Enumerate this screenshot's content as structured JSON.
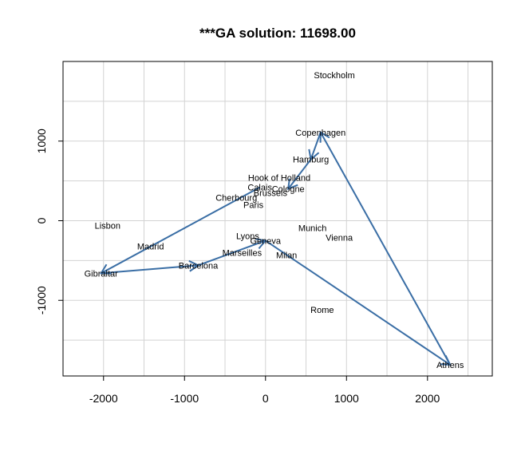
{
  "chart_data": {
    "type": "scatter",
    "title": "***GA solution: 11698.00",
    "xlabel": "",
    "ylabel": "",
    "xlim": [
      -2500,
      2800
    ],
    "ylim": [
      -1950,
      2000
    ],
    "x_ticks": [
      -2000,
      -1000,
      0,
      1000,
      2000
    ],
    "y_ticks": [
      -1000,
      0,
      1000
    ],
    "grid": true,
    "route_color": "#3a6ea5",
    "cities": [
      {
        "name": "Stockholm",
        "x": 850,
        "y": 1830
      },
      {
        "name": "Copenhagen",
        "x": 680,
        "y": 1110
      },
      {
        "name": "Hamburg",
        "x": 560,
        "y": 770
      },
      {
        "name": "Hook of Holland",
        "x": 170,
        "y": 540
      },
      {
        "name": "Calais",
        "x": -70,
        "y": 420
      },
      {
        "name": "Cologne",
        "x": 280,
        "y": 400
      },
      {
        "name": "Brussels",
        "x": 60,
        "y": 350
      },
      {
        "name": "Cherbourg",
        "x": -360,
        "y": 290
      },
      {
        "name": "Paris",
        "x": -150,
        "y": 200
      },
      {
        "name": "Lisbon",
        "x": -1950,
        "y": -60
      },
      {
        "name": "Munich",
        "x": 580,
        "y": -90
      },
      {
        "name": "Lyons",
        "x": -220,
        "y": -190
      },
      {
        "name": "Geneva",
        "x": 0,
        "y": -250
      },
      {
        "name": "Vienna",
        "x": 910,
        "y": -210
      },
      {
        "name": "Madrid",
        "x": -1420,
        "y": -320
      },
      {
        "name": "Marseilles",
        "x": -290,
        "y": -400
      },
      {
        "name": "Milan",
        "x": 260,
        "y": -430
      },
      {
        "name": "Barcelona",
        "x": -830,
        "y": -560
      },
      {
        "name": "Gibraltar",
        "x": -2030,
        "y": -660
      },
      {
        "name": "Rome",
        "x": 700,
        "y": -1120
      },
      {
        "name": "Athens",
        "x": 2280,
        "y": -1810
      }
    ],
    "route": [
      {
        "from": [
          -70,
          420
        ],
        "to": [
          -2030,
          -660
        ]
      },
      {
        "from": [
          -2030,
          -660
        ],
        "to": [
          -830,
          -560
        ]
      },
      {
        "from": [
          -830,
          -560
        ],
        "to": [
          0,
          -250
        ]
      },
      {
        "from": [
          0,
          -250
        ],
        "to": [
          2280,
          -1810
        ]
      },
      {
        "from": [
          2280,
          -1810
        ],
        "to": [
          680,
          1110
        ]
      },
      {
        "from": [
          680,
          1110
        ],
        "to": [
          560,
          770
        ]
      },
      {
        "from": [
          560,
          770
        ],
        "to": [
          280,
          400
        ]
      }
    ]
  }
}
